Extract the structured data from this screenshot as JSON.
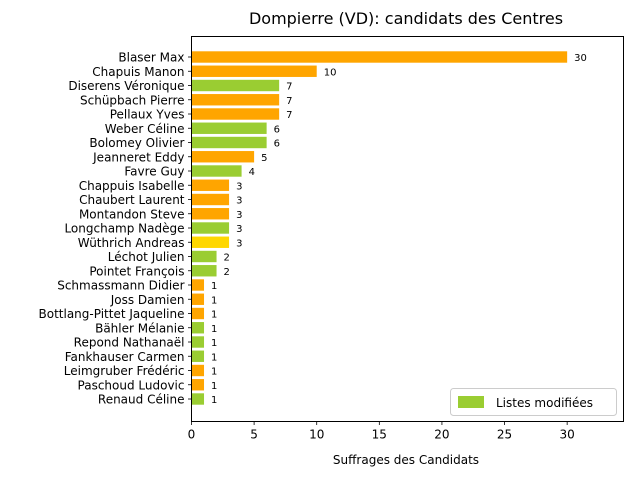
{
  "chart_data": {
    "type": "bar",
    "orientation": "horizontal",
    "title": "Dompierre (VD): candidats des Centres",
    "xlabel": "Suffrages des Candidats",
    "ylabel": "",
    "xlim": [
      0,
      34.5
    ],
    "xticks": [
      0,
      5,
      10,
      15,
      20,
      25,
      30
    ],
    "grid": false,
    "legend": {
      "position": "bottom-right",
      "entries": [
        {
          "label": "Listes modifiées",
          "color": "#9acd32"
        }
      ]
    },
    "bars": [
      {
        "name": "Blaser Max",
        "value": 30,
        "color": "#ffa500"
      },
      {
        "name": "Chapuis Manon",
        "value": 10,
        "color": "#ffa500"
      },
      {
        "name": "Diserens Véronique",
        "value": 7,
        "color": "#9acd32"
      },
      {
        "name": "Schüpbach Pierre",
        "value": 7,
        "color": "#ffa500"
      },
      {
        "name": "Pellaux Yves",
        "value": 7,
        "color": "#ffa500"
      },
      {
        "name": "Weber Céline",
        "value": 6,
        "color": "#9acd32"
      },
      {
        "name": "Bolomey Olivier",
        "value": 6,
        "color": "#9acd32"
      },
      {
        "name": "Jeanneret Eddy",
        "value": 5,
        "color": "#ffa500"
      },
      {
        "name": "Favre Guy",
        "value": 4,
        "color": "#9acd32"
      },
      {
        "name": "Chappuis Isabelle",
        "value": 3,
        "color": "#ffa500"
      },
      {
        "name": "Chaubert Laurent",
        "value": 3,
        "color": "#ffa500"
      },
      {
        "name": "Montandon Steve",
        "value": 3,
        "color": "#ffa500"
      },
      {
        "name": "Longchamp Nadège",
        "value": 3,
        "color": "#9acd32"
      },
      {
        "name": "Wüthrich Andreas",
        "value": 3,
        "color": "#ffd700"
      },
      {
        "name": "Léchot Julien",
        "value": 2,
        "color": "#9acd32"
      },
      {
        "name": "Pointet François",
        "value": 2,
        "color": "#9acd32"
      },
      {
        "name": "Schmassmann Didier",
        "value": 1,
        "color": "#ffa500"
      },
      {
        "name": "Joss Damien",
        "value": 1,
        "color": "#ffa500"
      },
      {
        "name": "Bottlang-Pittet Jaqueline",
        "value": 1,
        "color": "#ffa500"
      },
      {
        "name": "Bähler Mélanie",
        "value": 1,
        "color": "#9acd32"
      },
      {
        "name": "Repond Nathanaël",
        "value": 1,
        "color": "#9acd32"
      },
      {
        "name": "Fankhauser Carmen",
        "value": 1,
        "color": "#9acd32"
      },
      {
        "name": "Leimgruber Frédéric",
        "value": 1,
        "color": "#ffa500"
      },
      {
        "name": "Paschoud Ludovic",
        "value": 1,
        "color": "#ffa500"
      },
      {
        "name": "Renaud Céline",
        "value": 1,
        "color": "#9acd32"
      }
    ]
  }
}
